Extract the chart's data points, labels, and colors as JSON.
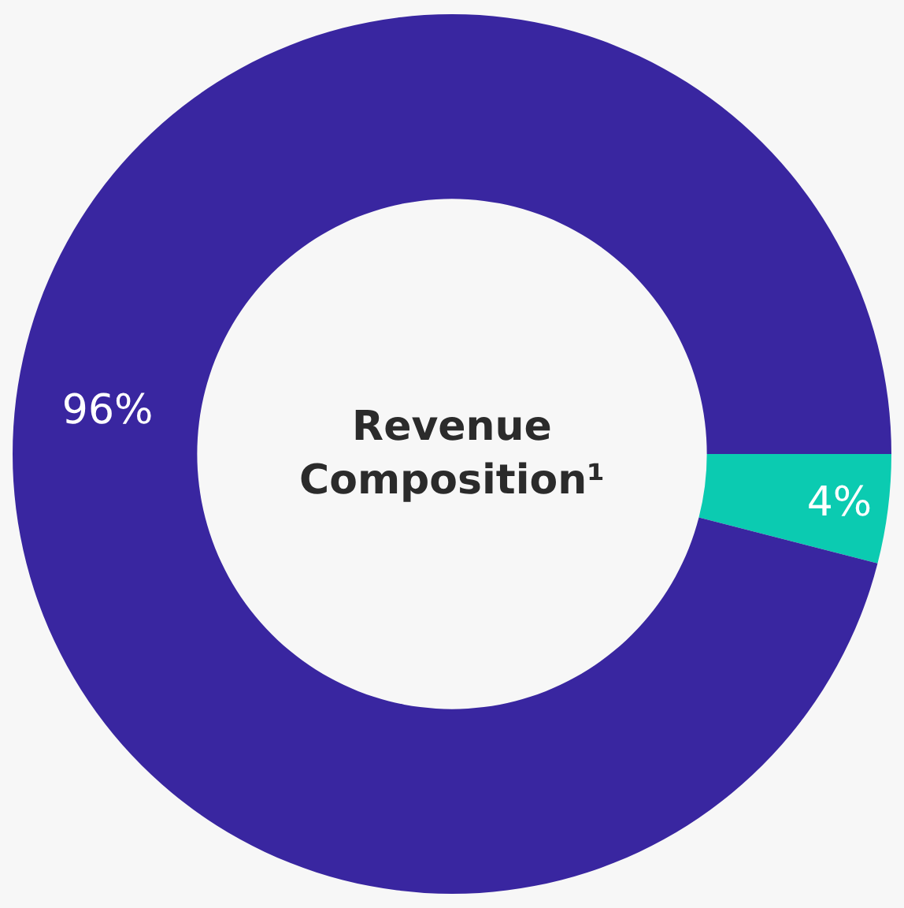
{
  "chart_data": {
    "type": "donut",
    "title": "Revenue Composition¹",
    "categories": [
      null,
      null
    ],
    "values": [
      4,
      96
    ],
    "value_labels": [
      "4%",
      "96%"
    ],
    "colors": [
      "#0bcbb1",
      "#3926a0"
    ],
    "legend": false
  }
}
